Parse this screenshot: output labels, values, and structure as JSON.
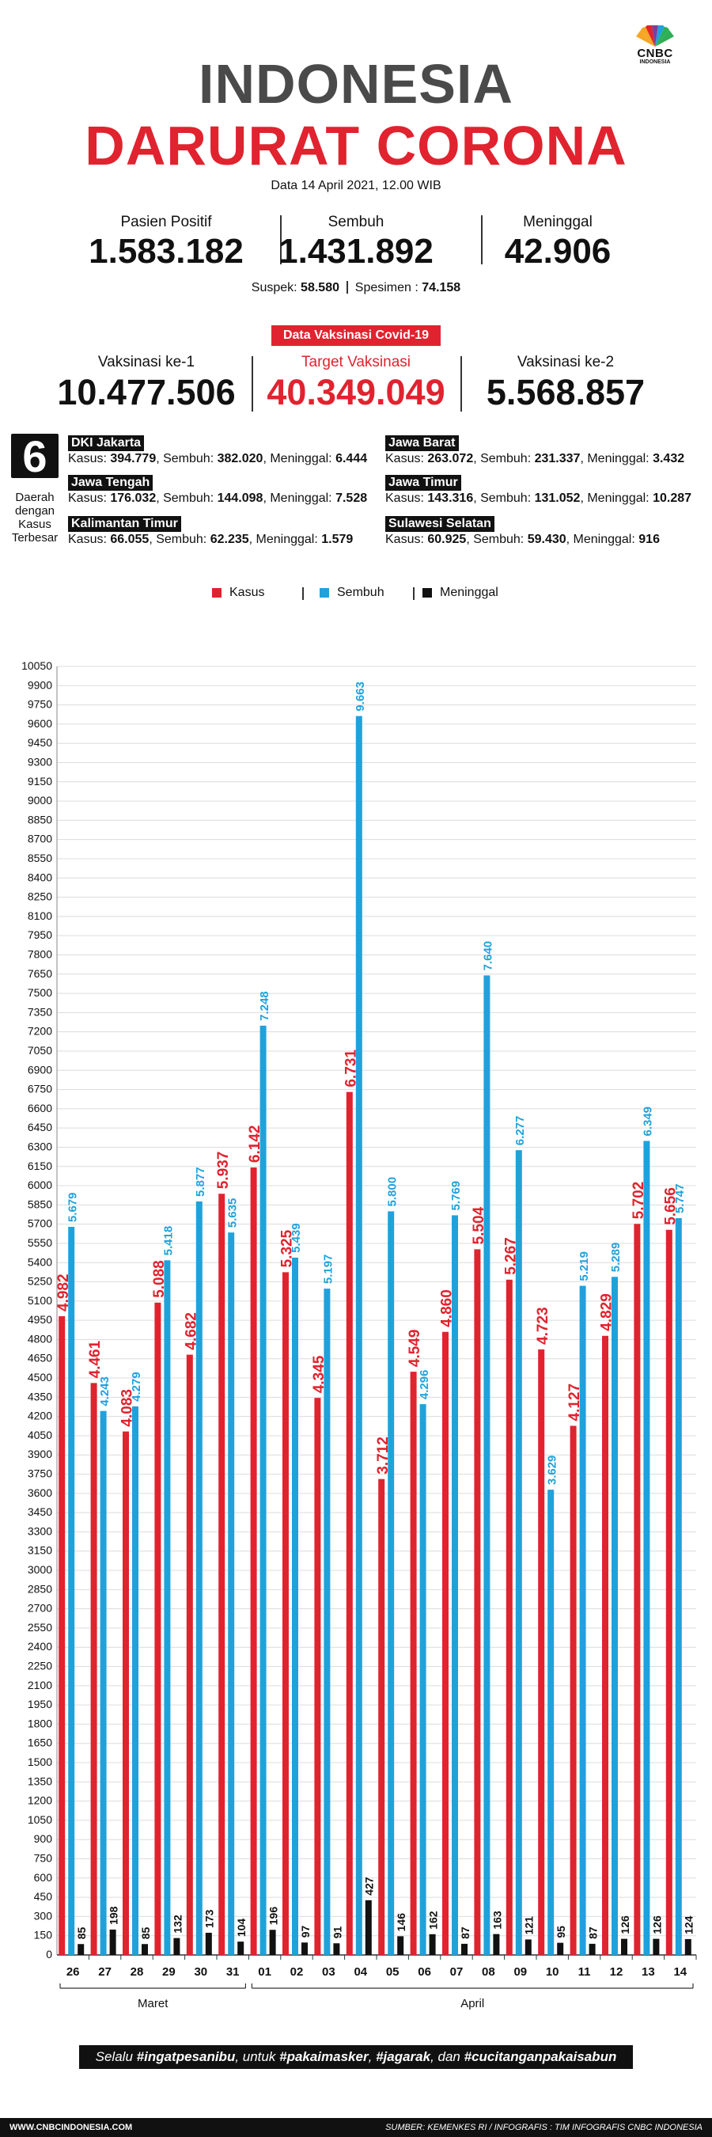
{
  "logo": {
    "line1": "CNBC",
    "line2": "INDONESIA"
  },
  "header": {
    "title_line1": "INDONESIA",
    "title_line2": "DARURAT CORONA",
    "date": "Data 14 April 2021, 12.00 WIB"
  },
  "stats": {
    "positif_label": "Pasien Positif",
    "positif_value": "1.583.182",
    "sembuh_label": "Sembuh",
    "sembuh_value": "1.431.892",
    "meninggal_label": "Meninggal",
    "meninggal_value": "42.906",
    "suspek_label": "Suspek:",
    "suspek_value": "58.580",
    "spesimen_label": "Spesimen :",
    "spesimen_value": "74.158"
  },
  "vaccination": {
    "badge": "Data Vaksinasi Covid-19",
    "v1_label": "Vaksinasi ke-1",
    "v1_value": "10.477.506",
    "target_label": "Target Vaksinasi",
    "target_value": "40.349.049",
    "v2_label": "Vaksinasi ke-2",
    "v2_value": "5.568.857"
  },
  "regions": {
    "count": "6",
    "label": "Daerah dengan Kasus Terbesar",
    "items": [
      {
        "name": "DKI Jakarta",
        "kasus": "394.779",
        "sembuh": "382.020",
        "meninggal": "6.444"
      },
      {
        "name": "Jawa Barat",
        "kasus": "263.072",
        "sembuh": "231.337",
        "meninggal": "3.432"
      },
      {
        "name": "Jawa Tengah",
        "kasus": "176.032",
        "sembuh": "144.098",
        "meninggal": "7.528"
      },
      {
        "name": "Jawa Timur",
        "kasus": "143.316",
        "sembuh": "131.052",
        "meninggal": "10.287"
      },
      {
        "name": "Kalimantan Timur",
        "kasus": "66.055",
        "sembuh": "62.235",
        "meninggal": "1.579"
      },
      {
        "name": "Sulawesi Selatan",
        "kasus": "60.925",
        "sembuh": "59.430",
        "meninggal": "916"
      }
    ],
    "kasus_label": "Kasus:",
    "sembuh_label": "Sembuh:",
    "meninggal_label": "Meninggal:"
  },
  "colors": {
    "kasus": "#e0232f",
    "sembuh": "#1fa2dc",
    "meninggal": "#111111",
    "title_gray": "#4a4a4a"
  },
  "chart_data": {
    "type": "bar",
    "categories": [
      "26",
      "27",
      "28",
      "29",
      "30",
      "31",
      "01",
      "02",
      "03",
      "04",
      "05",
      "06",
      "07",
      "08",
      "09",
      "10",
      "11",
      "12",
      "13",
      "14"
    ],
    "month_groups": [
      {
        "label": "Maret",
        "from": 0,
        "to": 5
      },
      {
        "label": "April",
        "from": 6,
        "to": 19
      }
    ],
    "series": [
      {
        "name": "Kasus",
        "color": "#e0232f",
        "values": [
          4982,
          4461,
          4083,
          5088,
          4682,
          5937,
          6142,
          5325,
          4345,
          6731,
          3712,
          4549,
          4860,
          5504,
          5267,
          4723,
          4127,
          4829,
          5702,
          5656
        ],
        "labels": [
          "4.982",
          "4.461",
          "4.083",
          "5.088",
          "4.682",
          "5.937",
          "6.142",
          "5.325",
          "4.345",
          "6.731",
          "3.712",
          "4.549",
          "4.860",
          "5.504",
          "5.267",
          "4.723",
          "4.127",
          "4.829",
          "5.702",
          "5.656"
        ]
      },
      {
        "name": "Sembuh",
        "color": "#1fa2dc",
        "values": [
          5679,
          4243,
          4279,
          5418,
          5877,
          5635,
          7248,
          5439,
          5197,
          9663,
          5800,
          4296,
          5769,
          7640,
          6277,
          3629,
          5219,
          5289,
          6349,
          5747
        ],
        "labels": [
          "5.679",
          "4.243",
          "4.279",
          "5.418",
          "5.877",
          "5.635",
          "7.248",
          "5.439",
          "5.197",
          "9.663",
          "5.800",
          "4.296",
          "5.769",
          "7.640",
          "6.277",
          "3.629",
          "5.219",
          "5.289",
          "6.349",
          "5.747"
        ]
      },
      {
        "name": "Meninggal",
        "color": "#111111",
        "values": [
          85,
          198,
          85,
          132,
          173,
          104,
          196,
          97,
          91,
          427,
          146,
          162,
          87,
          163,
          121,
          95,
          87,
          126,
          126,
          124
        ],
        "labels": [
          "85",
          "198",
          "85",
          "132",
          "173",
          "104",
          "196",
          "97",
          "91",
          "427",
          "146",
          "162",
          "87",
          "163",
          "121",
          "95",
          "87",
          "126",
          "126",
          "124"
        ]
      }
    ],
    "ylim": [
      0,
      10050
    ],
    "yticks": [
      0,
      150,
      300,
      450,
      600,
      750,
      900,
      1050,
      1200,
      1350,
      1500,
      1650,
      1800,
      1950,
      2100,
      2250,
      2400,
      2550,
      2700,
      2850,
      3000,
      3150,
      3300,
      3450,
      3600,
      3750,
      3900,
      4050,
      4200,
      4350,
      4500,
      4650,
      4800,
      4950,
      5100,
      5250,
      5400,
      5550,
      5700,
      5850,
      6000,
      6150,
      6300,
      6450,
      6600,
      6750,
      6900,
      7050,
      7200,
      7350,
      7500,
      7650,
      7800,
      7950,
      8100,
      8250,
      8400,
      8550,
      8700,
      8850,
      9000,
      9150,
      9300,
      9450,
      9600,
      9750,
      9900,
      10050
    ],
    "grid": true,
    "legend_position": "top-center"
  },
  "footer": {
    "slogan_prefix": "Selalu",
    "slogan_1": "#ingatpesanibu",
    "slogan_mid1": ", untuk",
    "slogan_2": "#pakaimasker",
    "slogan_sep": ",",
    "slogan_3": "#jagarak",
    "slogan_mid2": ", dan",
    "slogan_4": "#cucitanganpakaisabun",
    "site": "WWW.CNBCINDONESIA.COM",
    "source": "SUMBER: KEMENKES RI / INFOGRAFIS : TIM INFOGRAFIS CNBC INDONESIA"
  }
}
